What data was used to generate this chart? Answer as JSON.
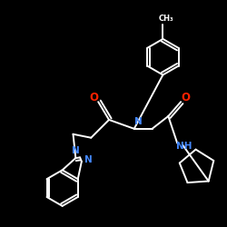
{
  "background_color": "#000000",
  "bond_color": "#ffffff",
  "N_color": "#4488ff",
  "O_color": "#ff2200",
  "figsize": [
    2.5,
    2.5
  ],
  "dpi": 100,
  "xlim": [
    0,
    250
  ],
  "ylim": [
    0,
    250
  ]
}
